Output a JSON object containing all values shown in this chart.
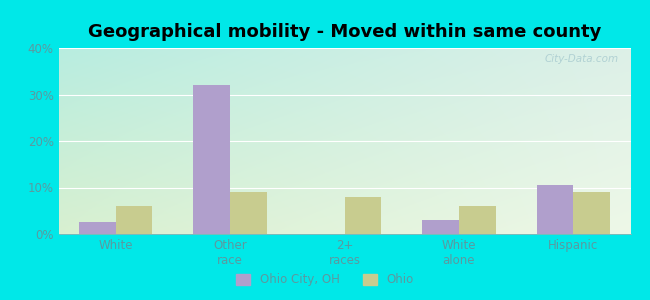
{
  "title": "Geographical mobility - Moved within same county",
  "categories": [
    "White",
    "Other\nrace",
    "2+\nraces",
    "White\nalone",
    "Hispanic"
  ],
  "ohio_city_values": [
    2.5,
    32.0,
    0.0,
    3.0,
    10.5
  ],
  "ohio_values": [
    6.0,
    9.0,
    8.0,
    6.0,
    9.0
  ],
  "ohio_city_color": "#b09fcc",
  "ohio_color": "#c8cc8f",
  "ylim": [
    0,
    40
  ],
  "yticks": [
    0,
    10,
    20,
    30,
    40
  ],
  "ytick_labels": [
    "0%",
    "10%",
    "20%",
    "30%",
    "40%"
  ],
  "bg_top_left": "#b8ede0",
  "bg_top_right": "#ddf0e8",
  "bg_bottom_left": "#d8f0d0",
  "bg_bottom_right": "#eef8e8",
  "outer_color": "#00e8e8",
  "legend_labels": [
    "Ohio City, OH",
    "Ohio"
  ],
  "bar_width": 0.32,
  "title_fontsize": 13,
  "watermark": "City-Data.com",
  "tick_color": "#5a9aa0",
  "label_color": "#5a9aa0"
}
